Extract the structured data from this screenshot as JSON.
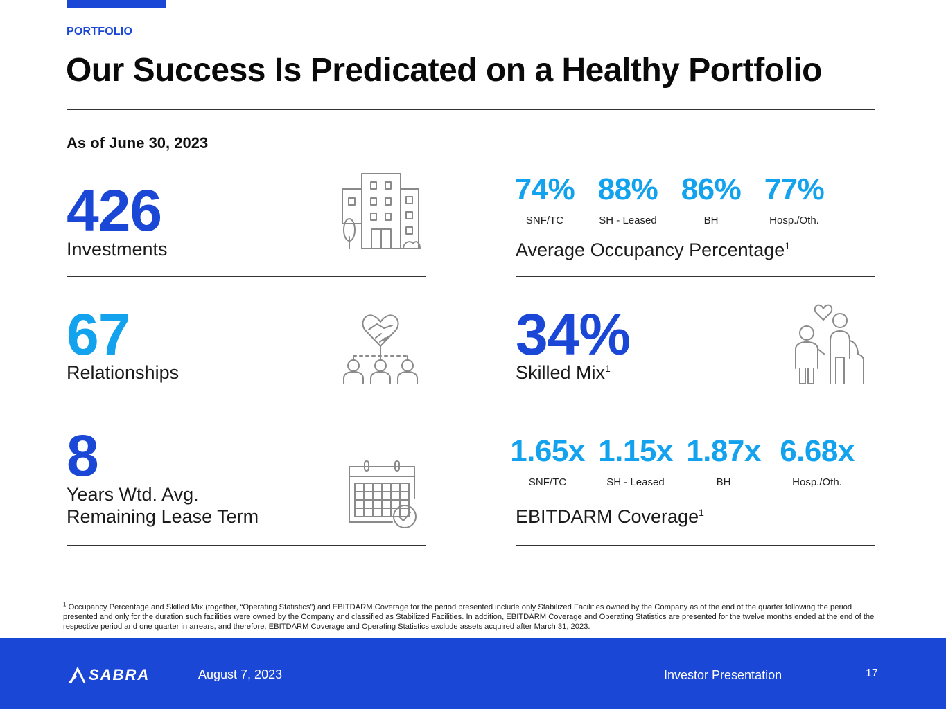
{
  "header": {
    "section_label": "PORTFOLIO",
    "title": "Our Success Is Predicated on a Healthy Portfolio",
    "as_of": "As of June 30, 2023"
  },
  "left": {
    "investments": {
      "value": "426",
      "label": "Investments",
      "icon": "building-icon"
    },
    "relationships": {
      "value": "67",
      "label": "Relationships",
      "icon": "handshake-icon"
    },
    "lease_term": {
      "value": "8",
      "label_line1": "Years Wtd. Avg.",
      "label_line2": "Remaining Lease Term",
      "icon": "calendar-icon"
    }
  },
  "occupancy": {
    "items": [
      {
        "value": "74%",
        "label": "SNF/TC"
      },
      {
        "value": "88%",
        "label": "SH - Leased"
      },
      {
        "value": "86%",
        "label": "BH"
      },
      {
        "value": "77%",
        "label": "Hosp./Oth."
      }
    ],
    "title": "Average Occupancy Percentage",
    "footnote_mark": "1"
  },
  "skilled_mix": {
    "value": "34%",
    "label": "Skilled Mix",
    "footnote_mark": "1",
    "icon": "family-icon"
  },
  "ebitdarm": {
    "items": [
      {
        "value": "1.65x",
        "label": "SNF/TC"
      },
      {
        "value": "1.15x",
        "label": "SH - Leased"
      },
      {
        "value": "1.87x",
        "label": "BH"
      },
      {
        "value": "6.68x",
        "label": "Hosp./Oth."
      }
    ],
    "title": "EBITDARM Coverage",
    "footnote_mark": "1"
  },
  "footnote": {
    "mark": "1",
    "text": "Occupancy Percentage and Skilled Mix (together, “Operating Statistics”) and EBITDARM Coverage for the period presented include only Stabilized Facilities owned by the Company as of the end of the quarter following the period presented and only for the duration such facilities were owned by the Company and classified as Stabilized Facilities. In addition, EBITDARM Coverage and Operating Statistics are presented for the twelve months ended at the end of the respective period and one quarter in arrears, and therefore, EBITDARM Coverage and Operating Statistics exclude assets acquired after March 31, 2023."
  },
  "footer": {
    "logo_text": "SABRA",
    "date": "August 7, 2023",
    "title": "Investor Presentation",
    "page": "17"
  },
  "colors": {
    "dark_blue": "#1a47d6",
    "light_blue": "#12a2ee",
    "icon_gray": "#8a8a8a"
  }
}
